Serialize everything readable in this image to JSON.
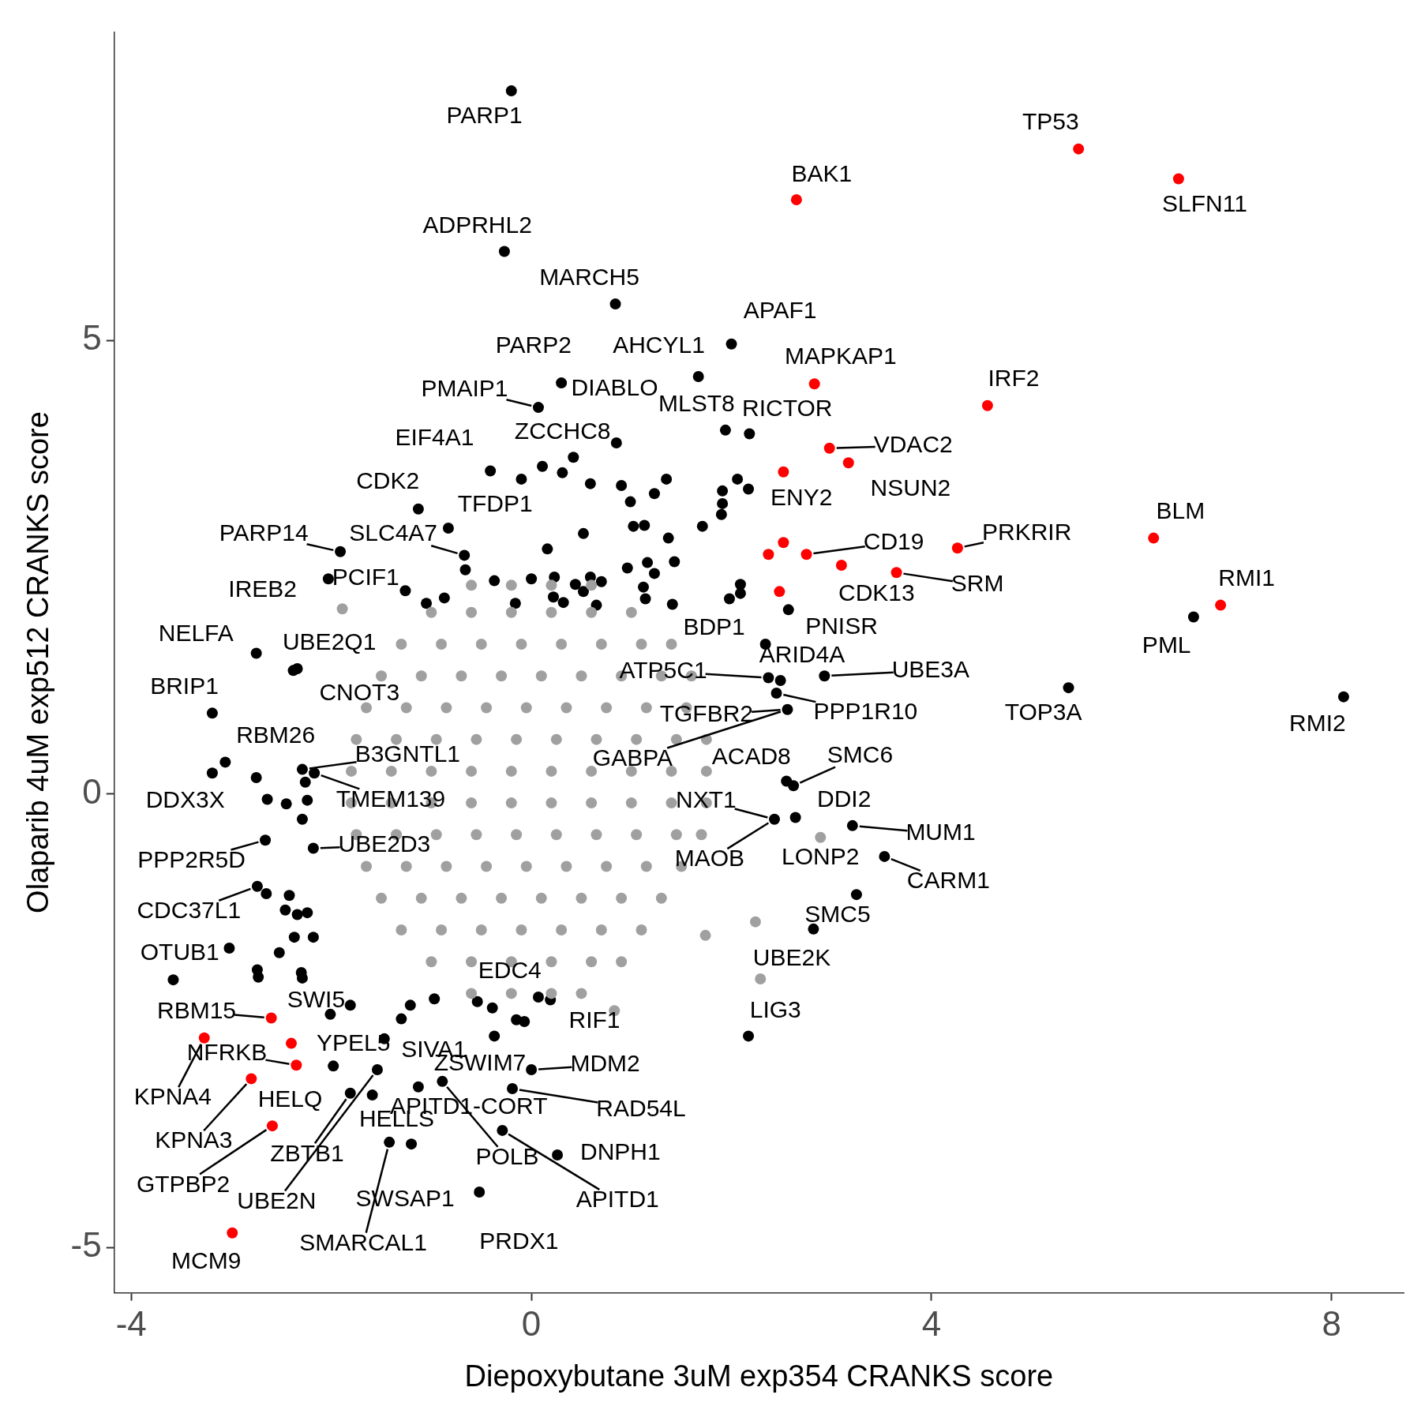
{
  "chart_data": {
    "type": "scatter",
    "xlabel": "Diepoxybutane 3uM exp354 CRANKS score",
    "ylabel": "Olaparib 4uM exp512 CRANKS score",
    "xlim": [
      -4.17,
      8.72
    ],
    "ylim": [
      -5.5,
      8.4
    ],
    "xticks": [
      -4,
      0,
      4,
      8
    ],
    "yticks": [
      -5,
      0,
      5
    ],
    "marker": "circle",
    "series": [
      {
        "color": "#a0a0a0",
        "x": [
          -0.6,
          -0.2,
          0.2,
          0.6,
          -1.0,
          -0.6,
          -0.2,
          0.2,
          0.6,
          1.0,
          -1.3,
          -0.9,
          -0.5,
          -0.1,
          0.3,
          0.7,
          1.1,
          1.4,
          -1.5,
          -1.1,
          -0.7,
          -0.3,
          0.1,
          0.5,
          0.9,
          1.3,
          1.6,
          -1.65,
          -1.25,
          -0.85,
          -0.45,
          -0.05,
          0.35,
          0.75,
          1.15,
          1.55,
          -1.75,
          -1.35,
          -0.95,
          -0.55,
          -0.15,
          0.25,
          0.65,
          1.05,
          1.45,
          1.75,
          -1.8,
          -1.4,
          -1.0,
          -0.6,
          -0.2,
          0.2,
          0.6,
          1.0,
          1.4,
          1.75,
          -1.8,
          -1.4,
          -1.0,
          -0.6,
          -0.2,
          0.2,
          0.6,
          1.0,
          1.4,
          1.75,
          -1.75,
          -1.35,
          -0.95,
          -0.55,
          -0.15,
          0.25,
          0.65,
          1.05,
          1.45,
          1.7,
          -1.65,
          -1.25,
          -0.85,
          -0.45,
          -0.05,
          0.35,
          0.75,
          1.15,
          1.5,
          -1.5,
          -1.1,
          -0.7,
          -0.3,
          0.1,
          0.5,
          0.9,
          1.3,
          -1.3,
          -0.9,
          -0.5,
          -0.1,
          0.3,
          0.7,
          1.1,
          -1.0,
          -0.6,
          -0.2,
          0.2,
          0.6,
          0.9,
          -0.6,
          -0.2,
          0.2,
          0.5,
          -1.89,
          2.89,
          2.24,
          2.29,
          1.74,
          0.83
        ],
        "values": [
          2.3,
          2.3,
          2.3,
          2.3,
          2.0,
          2.0,
          2.0,
          2.0,
          2.0,
          2.0,
          1.65,
          1.65,
          1.65,
          1.65,
          1.65,
          1.65,
          1.65,
          1.65,
          1.3,
          1.3,
          1.3,
          1.3,
          1.3,
          1.3,
          1.3,
          1.3,
          1.3,
          0.95,
          0.95,
          0.95,
          0.95,
          0.95,
          0.95,
          0.95,
          0.95,
          0.95,
          0.6,
          0.6,
          0.6,
          0.6,
          0.6,
          0.6,
          0.6,
          0.6,
          0.6,
          0.6,
          0.25,
          0.25,
          0.25,
          0.25,
          0.25,
          0.25,
          0.25,
          0.25,
          0.25,
          0.25,
          -0.1,
          -0.1,
          -0.1,
          -0.1,
          -0.1,
          -0.1,
          -0.1,
          -0.1,
          -0.1,
          -0.1,
          -0.45,
          -0.45,
          -0.45,
          -0.45,
          -0.45,
          -0.45,
          -0.45,
          -0.45,
          -0.45,
          -0.45,
          -0.8,
          -0.8,
          -0.8,
          -0.8,
          -0.8,
          -0.8,
          -0.8,
          -0.8,
          -0.8,
          -1.15,
          -1.15,
          -1.15,
          -1.15,
          -1.15,
          -1.15,
          -1.15,
          -1.15,
          -1.5,
          -1.5,
          -1.5,
          -1.5,
          -1.5,
          -1.5,
          -1.5,
          -1.85,
          -1.85,
          -1.85,
          -1.85,
          -1.85,
          -1.85,
          -2.2,
          -2.2,
          -2.2,
          -2.2,
          2.04,
          -0.48,
          -1.41,
          -2.04,
          -1.56,
          -2.39
        ]
      },
      {
        "color": "#000000",
        "x": [
          -0.2,
          -0.27,
          0.84,
          2.0,
          1.67,
          0.07,
          0.3,
          1.94,
          2.18,
          0.85,
          0.42,
          -0.41,
          -0.1,
          0.11,
          0.31,
          0.59,
          0.9,
          1.35,
          1.23,
          2.06,
          2.17,
          1.91,
          1.91,
          0.99,
          1.9,
          1.71,
          1.13,
          1.02,
          1.37,
          0.52,
          0.16,
          -0.67,
          0.96,
          1.16,
          1.43,
          1.23,
          0.23,
          0.44,
          0.59,
          0.7,
          0.0,
          -0.37,
          -0.66,
          1.12,
          0.52,
          0.32,
          0.22,
          0.65,
          1.14,
          1.41,
          -0.87,
          -1.05,
          -0.16,
          2.09,
          2.09,
          1.98,
          -1.13,
          -0.83,
          -1.91,
          -2.03,
          -1.26,
          2.57,
          2.34,
          2.49,
          2.37,
          2.93,
          2.56,
          5.37,
          6.62,
          8.12,
          -2.75,
          -2.38,
          -3.19,
          -3.06,
          -3.19,
          -2.75,
          -2.64,
          -2.45,
          -2.29,
          -2.17,
          -2.26,
          -2.24,
          -2.29,
          -2.66,
          -2.18,
          -2.74,
          -2.65,
          -2.42,
          -2.34,
          -2.46,
          -2.24,
          -2.37,
          -2.18,
          -2.52,
          -3.02,
          -3.58,
          -2.74,
          -2.73,
          -2.3,
          -2.29,
          2.55,
          2.62,
          2.43,
          2.64,
          3.21,
          3.53,
          3.25,
          2.82,
          2.17,
          -2.01,
          -1.81,
          -1.21,
          -1.3,
          -1.47,
          -1.98,
          -1.54,
          -1.81,
          -1.59,
          -1.13,
          -0.89,
          -1.42,
          -1.2,
          -0.97,
          -0.54,
          -0.39,
          -0.37,
          -0.15,
          -0.07,
          0.07,
          0.19,
          -0.19,
          0.0,
          -0.29,
          0.26,
          -0.52,
          -2.34,
          2.45
        ],
        "values": [
          7.75,
          5.98,
          5.4,
          4.96,
          4.6,
          4.26,
          4.53,
          4.01,
          3.97,
          3.87,
          3.71,
          3.56,
          3.47,
          3.61,
          3.54,
          3.42,
          3.4,
          3.47,
          3.31,
          3.47,
          3.36,
          3.34,
          3.2,
          3.22,
          3.08,
          2.95,
          2.96,
          2.95,
          2.82,
          2.87,
          2.7,
          2.63,
          2.49,
          2.55,
          2.56,
          2.43,
          2.39,
          2.31,
          2.39,
          2.34,
          2.37,
          2.35,
          2.47,
          2.28,
          2.23,
          2.11,
          2.17,
          2.08,
          2.15,
          2.09,
          2.16,
          2.1,
          2.1,
          2.31,
          2.21,
          2.15,
          3.14,
          2.93,
          2.67,
          2.37,
          2.24,
          2.03,
          1.65,
          1.25,
          1.28,
          1.3,
          0.93,
          1.17,
          1.95,
          1.07,
          1.55,
          1.36,
          0.89,
          0.35,
          0.23,
          0.18,
          -0.06,
          -0.11,
          0.27,
          0.23,
          0.13,
          -0.07,
          -0.28,
          -0.51,
          -0.6,
          -1.02,
          -1.1,
          -1.12,
          -1.33,
          -1.28,
          -1.31,
          -1.58,
          -1.58,
          -1.75,
          -1.7,
          -2.05,
          -1.94,
          -2.02,
          -1.97,
          -2.03,
          0.14,
          0.09,
          -0.28,
          -0.26,
          -0.35,
          -0.69,
          -1.11,
          -1.49,
          -2.67,
          -2.43,
          -2.33,
          -2.33,
          -2.48,
          -2.7,
          -3.0,
          -3.04,
          -3.3,
          -3.32,
          -3.23,
          -3.17,
          -3.84,
          -3.86,
          -2.26,
          -2.29,
          -2.36,
          -2.67,
          -2.49,
          -2.51,
          -2.24,
          -2.27,
          -3.25,
          -3.04,
          -3.71,
          -3.98,
          -4.39,
          1.38,
          1.11
        ]
      },
      {
        "color": "#ff0000",
        "x": [
          5.47,
          6.47,
          2.65,
          2.83,
          4.56,
          2.98,
          3.17,
          2.52,
          2.52,
          2.37,
          2.75,
          3.1,
          2.48,
          4.26,
          3.65,
          6.22,
          6.89,
          -2.6,
          -3.27,
          -2.4,
          -2.35,
          -2.8,
          -2.59,
          -2.99
        ],
        "values": [
          7.11,
          6.78,
          6.55,
          4.52,
          4.28,
          3.81,
          3.65,
          3.55,
          2.77,
          2.64,
          2.64,
          2.52,
          2.23,
          2.71,
          2.44,
          2.82,
          2.08,
          -2.47,
          -2.69,
          -2.75,
          -2.99,
          -3.14,
          -3.66,
          -4.84
        ]
      }
    ],
    "annotations": [
      {
        "text": "PARP1",
        "x": -0.2,
        "y": 7.75
      },
      {
        "text": "TP53",
        "x": 5.47,
        "y": 7.11
      },
      {
        "text": "BAK1",
        "x": 2.65,
        "y": 6.55
      },
      {
        "text": "SLFN11",
        "x": 6.47,
        "y": 6.78
      },
      {
        "text": "ADPRHL2",
        "x": -0.27,
        "y": 5.98
      },
      {
        "text": "MARCH5",
        "x": 0.84,
        "y": 5.4
      },
      {
        "text": "APAF1",
        "x": 2.0,
        "y": 4.96
      },
      {
        "text": "PARP2",
        "x": 0.3,
        "y": 4.53
      },
      {
        "text": "AHCYL1",
        "x": 1.67,
        "y": 4.6
      },
      {
        "text": "MAPKAP1",
        "x": 2.83,
        "y": 4.52
      },
      {
        "text": "IRF2",
        "x": 4.56,
        "y": 4.28
      },
      {
        "text": "PMAIP1",
        "x": 0.07,
        "y": 4.26
      },
      {
        "text": "DIABLO",
        "x": 0.85,
        "y": 3.87
      },
      {
        "text": "MLST8",
        "x": 1.94,
        "y": 4.01
      },
      {
        "text": "RICTOR",
        "x": 2.18,
        "y": 3.97
      },
      {
        "text": "EIF4A1",
        "x": -0.41,
        "y": 3.56
      },
      {
        "text": "ZCCHC8",
        "x": 0.42,
        "y": 3.71
      },
      {
        "text": "VDAC2",
        "x": 2.98,
        "y": 3.81
      },
      {
        "text": "CDK2",
        "x": -1.13,
        "y": 3.14
      },
      {
        "text": "NSUN2",
        "x": 3.17,
        "y": 3.65
      },
      {
        "text": "ENY2",
        "x": 2.52,
        "y": 3.55
      },
      {
        "text": "TFDP1",
        "x": -0.83,
        "y": 2.93
      },
      {
        "text": "PARP14",
        "x": -1.91,
        "y": 2.67
      },
      {
        "text": "SLC4A7",
        "x": -0.67,
        "y": 2.63
      },
      {
        "text": "CD19",
        "x": 2.75,
        "y": 2.64
      },
      {
        "text": "PRKRIR",
        "x": 4.26,
        "y": 2.71
      },
      {
        "text": "BLM",
        "x": 6.22,
        "y": 2.82
      },
      {
        "text": "PCIF1",
        "x": -1.26,
        "y": 2.24
      },
      {
        "text": "IREB2",
        "x": -2.03,
        "y": 2.37
      },
      {
        "text": "SRM",
        "x": 3.65,
        "y": 2.44
      },
      {
        "text": "CDK13",
        "x": 3.1,
        "y": 2.52
      },
      {
        "text": "RMI1",
        "x": 6.89,
        "y": 2.08
      },
      {
        "text": "PNISR",
        "x": 2.57,
        "y": 2.03
      },
      {
        "text": "NELFA",
        "x": -2.75,
        "y": 1.55
      },
      {
        "text": "BDP1",
        "x": 2.34,
        "y": 1.65
      },
      {
        "text": "PML",
        "x": 6.62,
        "y": 1.95
      },
      {
        "text": "UBE2Q1",
        "x": -2.38,
        "y": 1.36
      },
      {
        "text": "ARID4A",
        "x": 2.49,
        "y": 1.25
      },
      {
        "text": "ATP5C1",
        "x": 2.37,
        "y": 1.28
      },
      {
        "text": "UBE3A",
        "x": 2.93,
        "y": 1.3
      },
      {
        "text": "BRIP1",
        "x": -3.19,
        "y": 0.89
      },
      {
        "text": "CNOT3",
        "x": -2.34,
        "y": 1.38
      },
      {
        "text": "TOP3A",
        "x": 5.37,
        "y": 1.17
      },
      {
        "text": "TGFBR2",
        "x": 2.56,
        "y": 0.93
      },
      {
        "text": "PPP1R10",
        "x": 2.45,
        "y": 1.11
      },
      {
        "text": "RMI2",
        "x": 8.12,
        "y": 1.07
      },
      {
        "text": "RBM26",
        "x": -3.06,
        "y": 0.35
      },
      {
        "text": "B3GNTL1",
        "x": -2.29,
        "y": 0.27
      },
      {
        "text": "SMC6",
        "x": 2.62,
        "y": 0.09
      },
      {
        "text": "ACAD8",
        "x": 2.55,
        "y": 0.14
      },
      {
        "text": "GABPA",
        "x": 2.56,
        "y": 0.93
      },
      {
        "text": "DDX3X",
        "x": -3.19,
        "y": 0.23
      },
      {
        "text": "TMEM139",
        "x": -2.17,
        "y": 0.23
      },
      {
        "text": "NXT1",
        "x": 2.43,
        "y": -0.28
      },
      {
        "text": "DDI2",
        "x": 2.64,
        "y": -0.26
      },
      {
        "text": "MUM1",
        "x": 3.21,
        "y": -0.35
      },
      {
        "text": "UBE2D3",
        "x": -2.18,
        "y": -0.6
      },
      {
        "text": "PPP2R5D",
        "x": -2.66,
        "y": -0.51
      },
      {
        "text": "LONP2",
        "x": 2.89,
        "y": -0.48
      },
      {
        "text": "MAOB",
        "x": 2.43,
        "y": -0.28
      },
      {
        "text": "CARM1",
        "x": 3.53,
        "y": -0.69
      },
      {
        "text": "CDC37L1",
        "x": -2.74,
        "y": -1.02
      },
      {
        "text": "SMC5",
        "x": 3.25,
        "y": -1.11
      },
      {
        "text": "OTUB1",
        "x": -3.02,
        "y": -1.7
      },
      {
        "text": "UBE2K",
        "x": 2.82,
        "y": -1.49
      },
      {
        "text": "EDC4",
        "x": -0.54,
        "y": -2.29
      },
      {
        "text": "SWI5",
        "x": -1.81,
        "y": -2.33
      },
      {
        "text": "RBM15",
        "x": -2.6,
        "y": -2.47
      },
      {
        "text": "LIG3",
        "x": 2.17,
        "y": -2.67
      },
      {
        "text": "RIF1",
        "x": 0.19,
        "y": -2.27
      },
      {
        "text": "NFRKB",
        "x": -2.35,
        "y": -2.99
      },
      {
        "text": "YPEL5",
        "x": -2.4,
        "y": -2.75
      },
      {
        "text": "SIVA1",
        "x": -1.47,
        "y": -2.7
      },
      {
        "text": "ZSWIM7",
        "x": -0.37,
        "y": -2.67
      },
      {
        "text": "MDM2",
        "x": 0.0,
        "y": -3.04
      },
      {
        "text": "KPNA4",
        "x": -3.27,
        "y": -2.69
      },
      {
        "text": "HELQ",
        "x": -1.98,
        "y": -3.0
      },
      {
        "text": "APITD1-CORT",
        "x": -1.13,
        "y": -3.23
      },
      {
        "text": "RAD54L",
        "x": -0.19,
        "y": -3.25
      },
      {
        "text": "HELLS",
        "x": -1.59,
        "y": -3.32
      },
      {
        "text": "KPNA3",
        "x": -2.8,
        "y": -3.14
      },
      {
        "text": "ZBTB1",
        "x": -1.81,
        "y": -3.3
      },
      {
        "text": "POLB",
        "x": -0.89,
        "y": -3.17
      },
      {
        "text": "DNPH1",
        "x": 0.26,
        "y": -3.98
      },
      {
        "text": "GTPBP2",
        "x": -2.59,
        "y": -3.66
      },
      {
        "text": "UBE2N",
        "x": -1.54,
        "y": -3.04
      },
      {
        "text": "SWSAP1",
        "x": -1.2,
        "y": -3.86
      },
      {
        "text": "APITD1",
        "x": -0.29,
        "y": -3.71
      },
      {
        "text": "SMARCAL1",
        "x": -1.42,
        "y": -3.84
      },
      {
        "text": "PRDX1",
        "x": -0.52,
        "y": -4.39
      },
      {
        "text": "MCM9",
        "x": -2.99,
        "y": -4.84
      }
    ]
  }
}
